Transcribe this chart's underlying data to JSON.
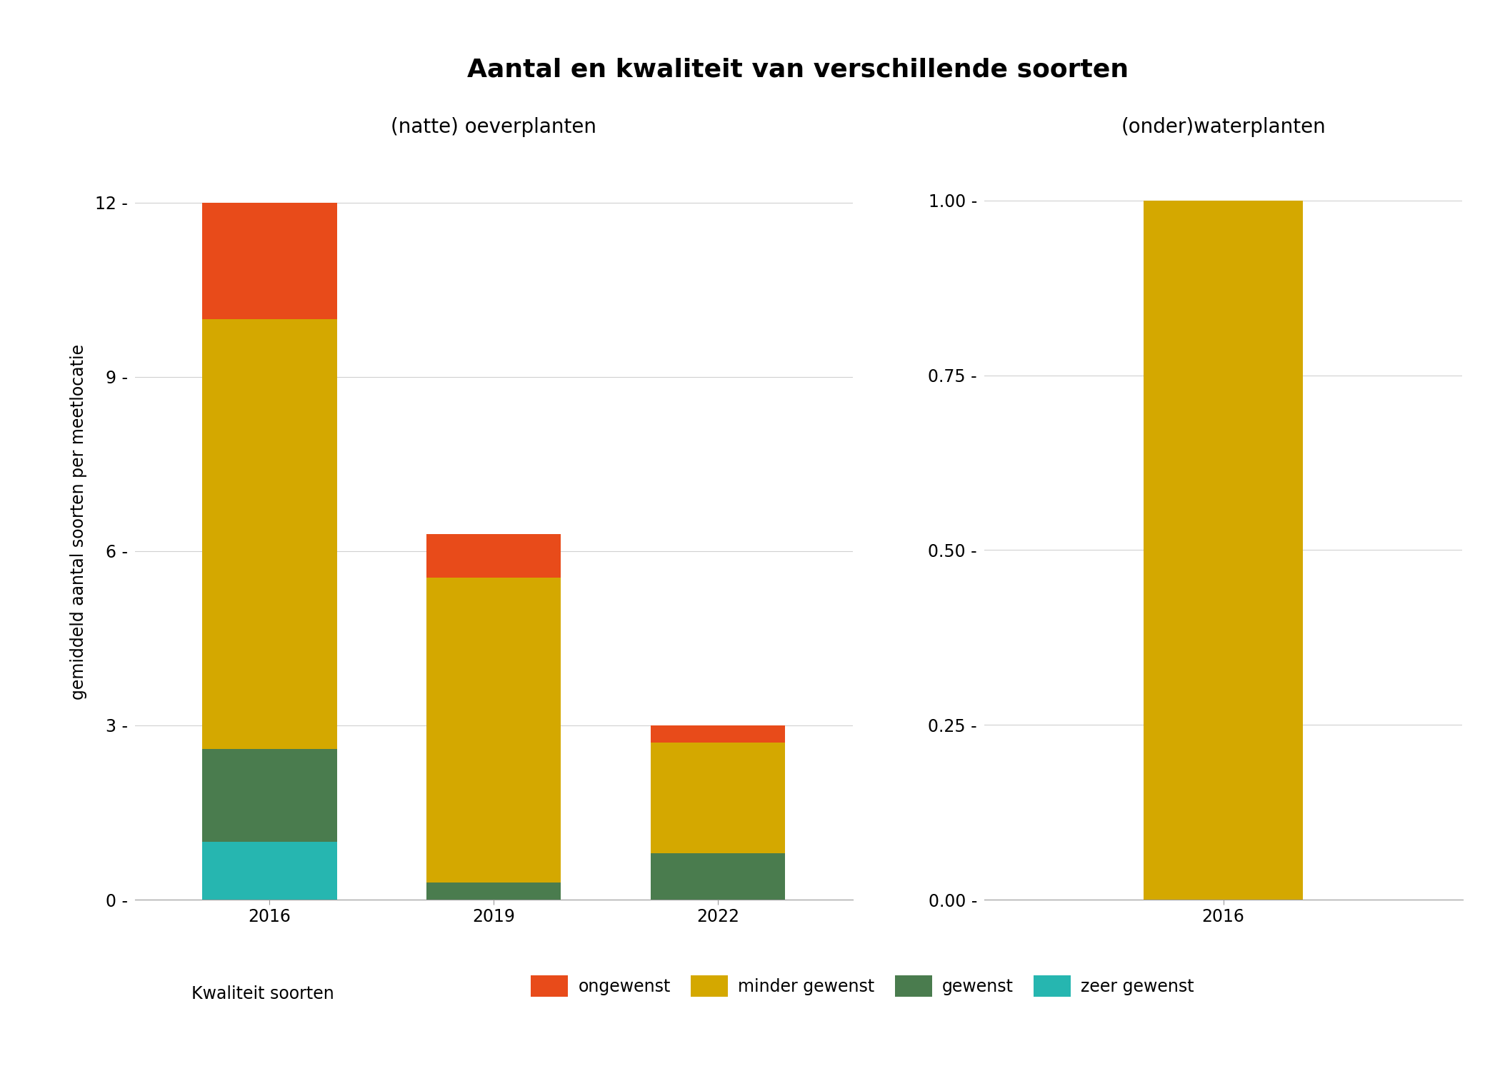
{
  "title": "Aantal en kwaliteit van verschillende soorten",
  "left_subtitle": "(natte) oeverplanten",
  "right_subtitle": "(onder)waterplanten",
  "ylabel": "gemiddeld aantal soorten per meetlocatie",
  "left_categories": [
    "2016",
    "2019",
    "2022"
  ],
  "right_categories": [
    "2016"
  ],
  "left_data": {
    "zeer_gewenst": [
      1.0,
      0.0,
      0.0
    ],
    "gewenst": [
      1.6,
      0.3,
      0.8
    ],
    "minder_gewenst": [
      7.4,
      5.25,
      1.9
    ],
    "ongewenst": [
      2.0,
      0.75,
      0.3
    ]
  },
  "right_data": {
    "zeer_gewenst": [
      0.0
    ],
    "gewenst": [
      0.0
    ],
    "minder_gewenst": [
      1.0
    ],
    "ongewenst": [
      0.0
    ]
  },
  "left_ylim": [
    0,
    13.0
  ],
  "left_yticks": [
    0,
    3,
    6,
    9,
    12
  ],
  "right_ylim": [
    0,
    1.08
  ],
  "right_yticks": [
    0.0,
    0.25,
    0.5,
    0.75,
    1.0
  ],
  "colors": {
    "zeer_gewenst": "#26b6b0",
    "gewenst": "#4a7c4e",
    "minder_gewenst": "#d4a800",
    "ongewenst": "#e84b1a"
  },
  "legend_labels": [
    "ongewenst",
    "minder gewenst",
    "gewenst",
    "zeer gewenst"
  ],
  "legend_title": "Kwaliteit soorten",
  "background_color": "#ffffff",
  "grid_color": "#d0d0d0",
  "bar_width": 0.6,
  "title_fontsize": 26,
  "subtitle_fontsize": 20,
  "label_fontsize": 17,
  "tick_fontsize": 17,
  "legend_fontsize": 17
}
